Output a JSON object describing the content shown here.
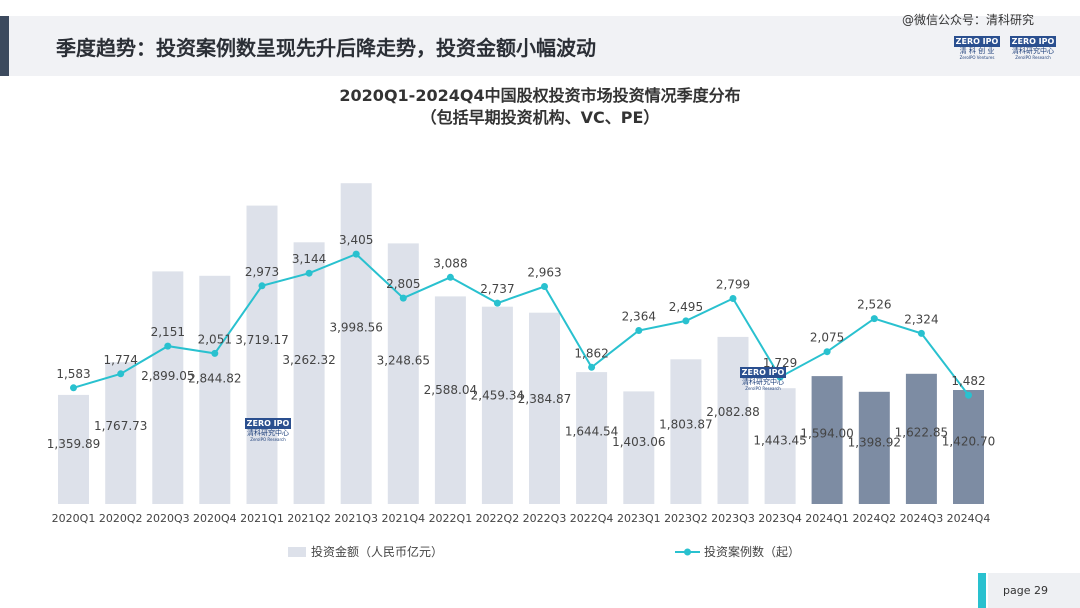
{
  "header": {
    "title": "季度趋势：投资案例数呈现先升后降走势，投资金额小幅波动",
    "watermark": "@微信公众号：清科研究"
  },
  "logos": {
    "left": {
      "top": "ZERO IPO",
      "sub": "清 科 创 业",
      "tiny": "ZeroIPO Ventures"
    },
    "right": {
      "top": "ZERO IPO",
      "sub": "清科研究中心",
      "tiny": "ZeroIPO Research"
    },
    "inline": {
      "top": "ZERO IPO",
      "sub": "清科研究中心",
      "tiny": "ZeroIPO Research"
    }
  },
  "chart_data": {
    "type": "bar",
    "title": "2020Q1-2024Q4中国股权投资市场投资情况季度分布",
    "subtitle": "（包括早期投资机构、VC、PE）",
    "categories": [
      "2020Q1",
      "2020Q2",
      "2020Q3",
      "2020Q4",
      "2021Q1",
      "2021Q2",
      "2021Q3",
      "2021Q4",
      "2022Q1",
      "2022Q2",
      "2022Q3",
      "2022Q4",
      "2023Q1",
      "2023Q2",
      "2023Q3",
      "2023Q4",
      "2024Q1",
      "2024Q2",
      "2024Q3",
      "2024Q4"
    ],
    "series": [
      {
        "name": "投资金额（人民币亿元）",
        "type": "bar",
        "values": [
          1359.89,
          1767.73,
          2899.05,
          2844.82,
          3719.17,
          3262.32,
          3998.56,
          3248.65,
          2588.04,
          2459.34,
          2384.87,
          1644.54,
          1403.06,
          1803.87,
          2082.88,
          1443.45,
          1594.0,
          1398.92,
          1622.85,
          1420.7
        ],
        "labels": [
          "1,359.89",
          "1,767.73",
          "2,899.05",
          "2,844.82",
          "3,719.17",
          "3,262.32",
          "3,998.56",
          "3,248.65",
          "2,588.04",
          "2,459.34",
          "2,384.87",
          "1,644.54",
          "1,403.06",
          "1,803.87",
          "2,082.88",
          "1,443.45",
          "1,594.00",
          "1,398.92",
          "1,622.85",
          "1,420.70"
        ],
        "color": "#dde1ea",
        "highlight_color": "#7d8ca3",
        "highlight_from": "2024Q1"
      },
      {
        "name": "投资案例数（起）",
        "type": "line",
        "values": [
          1583,
          1774,
          2151,
          2051,
          2973,
          3144,
          3405,
          2805,
          3088,
          2737,
          2963,
          1862,
          2364,
          2495,
          2799,
          1729,
          2075,
          2526,
          2324,
          1482
        ],
        "labels": [
          "1,583",
          "1,774",
          "2,151",
          "2,051",
          "2,973",
          "3,144",
          "3,405",
          "2,805",
          "3,088",
          "2,737",
          "2,963",
          "1,862",
          "2,364",
          "2,495",
          "2,799",
          "1,729",
          "2,075",
          "2,526",
          "2,324",
          "1,482"
        ],
        "color": "#29c1cf"
      }
    ],
    "xlabel": "",
    "ylabel": "",
    "ylim_amount": [
      0,
      4300
    ],
    "ylim_count": [
      0,
      4700
    ],
    "legend": "bottom",
    "grid": false
  },
  "footer": {
    "page": "page   29"
  }
}
